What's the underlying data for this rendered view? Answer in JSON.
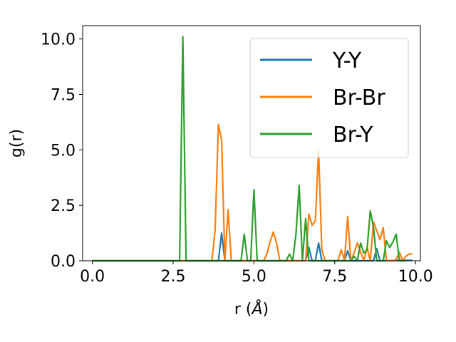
{
  "chart_data": {
    "type": "line",
    "title": "",
    "xlabel": "r (",
    "xlabel_unit": "Å",
    "xlabel_close": ")",
    "ylabel": "g(r)",
    "xlim": [
      -0.3,
      10.15
    ],
    "ylim": [
      0,
      10.6
    ],
    "xticks": [
      0.0,
      2.5,
      5.0,
      7.5,
      10.0
    ],
    "xtick_labels": [
      "0.0",
      "2.5",
      "5.0",
      "7.5",
      "10.0"
    ],
    "yticks": [
      0.0,
      2.5,
      5.0,
      7.5,
      10.0
    ],
    "ytick_labels": [
      "0.0",
      "2.5",
      "5.0",
      "7.5",
      "10.0"
    ],
    "grid": false,
    "legend_position": "upper-right",
    "series": [
      {
        "name": "Y-Y",
        "color": "#1f77b4",
        "x": [
          0,
          3.9,
          4.0,
          4.1,
          6.6,
          6.7,
          6.8,
          6.9,
          7.0,
          7.1,
          7.8,
          7.9,
          8.0,
          8.1,
          8.7,
          8.8,
          8.9,
          9.0,
          9.7,
          9.9
        ],
        "y": [
          0,
          0,
          1.25,
          0,
          0,
          0.6,
          0,
          0,
          0.8,
          0,
          0,
          0.45,
          0,
          0,
          0,
          0.55,
          0,
          0,
          0.02,
          0.02
        ]
      },
      {
        "name": "Br-Br",
        "color": "#ff7f0e",
        "x": [
          0,
          3.7,
          3.8,
          3.9,
          4.0,
          4.1,
          4.2,
          4.3,
          5.3,
          5.4,
          5.5,
          5.6,
          5.7,
          5.8,
          6.5,
          6.6,
          6.7,
          6.8,
          6.9,
          7.0,
          7.1,
          7.2,
          7.6,
          7.7,
          7.8,
          7.9,
          8.0,
          8.1,
          8.2,
          8.3,
          8.4,
          8.5,
          8.6,
          8.7,
          8.8,
          8.9,
          9.0,
          9.1,
          9.2,
          9.3,
          9.4,
          9.5,
          9.6,
          9.7,
          9.8,
          9.9
        ],
        "y": [
          0,
          0,
          1.4,
          6.15,
          5.45,
          0,
          2.3,
          0,
          0,
          0.3,
          0.85,
          1.3,
          0.8,
          0,
          0,
          0,
          2.1,
          1.6,
          1.8,
          5.0,
          0.5,
          0,
          0,
          0.5,
          0,
          2.0,
          0,
          0.35,
          0.8,
          0.4,
          0,
          0.6,
          0,
          1.75,
          1.35,
          0.95,
          1.5,
          0,
          0,
          0,
          0.05,
          0.4,
          0,
          0.2,
          0.3,
          0.3
        ]
      },
      {
        "name": "Br-Y",
        "color": "#2ca02c",
        "x": [
          0,
          2.7,
          2.8,
          2.9,
          4.5,
          4.6,
          4.7,
          4.8,
          4.9,
          5.0,
          5.1,
          5.8,
          5.9,
          6.0,
          6.1,
          6.2,
          6.3,
          6.4,
          6.5,
          6.6,
          6.7,
          6.8,
          7.8,
          7.9,
          8.0,
          8.1,
          8.2,
          8.3,
          8.4,
          8.5,
          8.6,
          8.7,
          8.8,
          8.9,
          9.0,
          9.1,
          9.2,
          9.3,
          9.4,
          9.5,
          9.6,
          9.7
        ],
        "y": [
          0,
          0,
          10.1,
          0,
          0,
          0,
          1.2,
          0,
          0,
          3.2,
          0,
          0,
          0,
          0,
          0.3,
          0,
          1.2,
          3.4,
          0,
          1.9,
          0,
          0,
          0,
          0,
          0,
          0.2,
          0,
          0.8,
          0.35,
          0.5,
          2.25,
          1.5,
          0,
          0,
          0,
          0.9,
          0.6,
          0.85,
          1.2,
          0,
          0,
          0
        ]
      }
    ]
  }
}
